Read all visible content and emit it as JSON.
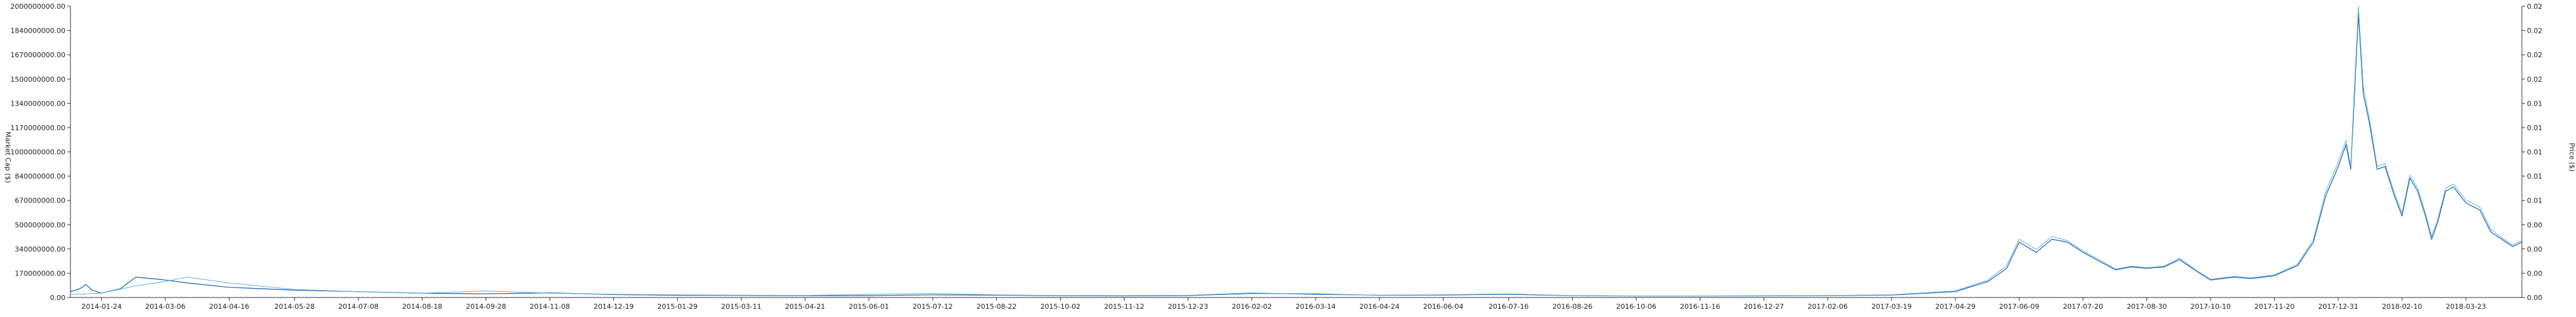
{
  "chart_data": {
    "type": "line",
    "title": "",
    "ylabel_left": "Market Cap ($)",
    "ylabel_right": "Price ($)",
    "y_left_ticks": [
      "0.00",
      "170000000.00",
      "340000000.00",
      "500000000.00",
      "670000000.00",
      "840000000.00",
      "1000000000.00",
      "1170000000.00",
      "1340000000.00",
      "1500000000.00",
      "1670000000.00",
      "1840000000.00",
      "2000000000.00"
    ],
    "y_left_range": [
      0,
      2000000000
    ],
    "y_right_ticks": [
      "0.00",
      "0.00",
      "0.00",
      "0.00",
      "0.01",
      "0.01",
      "0.01",
      "0.01",
      "0.01",
      "0.02",
      "0.02",
      "0.02",
      "0.02"
    ],
    "y_right_range": [
      0,
      0.024
    ],
    "x_ticks": [
      "2014-01-24",
      "2014-03-06",
      "2014-04-16",
      "2014-05-28",
      "2014-07-08",
      "2014-08-18",
      "2014-09-28",
      "2014-11-08",
      "2014-12-19",
      "2015-01-29",
      "2015-03-11",
      "2015-04-21",
      "2015-06-01",
      "2015-07-12",
      "2015-08-22",
      "2015-10-02",
      "2015-11-12",
      "2015-12-23",
      "2016-02-02",
      "2016-03-14",
      "2016-04-24",
      "2016-06-04",
      "2016-07-16",
      "2016-08-26",
      "2016-10-06",
      "2016-11-16",
      "2016-12-27",
      "2017-02-06",
      "2017-03-19",
      "2017-04-29",
      "2017-06-09",
      "2017-07-20",
      "2017-08-30",
      "2017-10-10",
      "2017-11-20",
      "2017-12-31",
      "2018-02-10",
      "2018-03-23"
    ],
    "x_range": [
      "2014-01-04",
      "2018-04-28"
    ],
    "grid": false,
    "colors": {
      "market_cap": "#1a5fa8",
      "price": "#5ab0e6",
      "axis": "#333333"
    },
    "series": [
      {
        "axis": "left",
        "points": [
          [
            "2014-01-04",
            40000000
          ],
          [
            "2014-01-10",
            60000000
          ],
          [
            "2014-01-14",
            90000000
          ],
          [
            "2014-01-18",
            50000000
          ],
          [
            "2014-01-24",
            30000000
          ],
          [
            "2014-02-05",
            60000000
          ],
          [
            "2014-02-15",
            140000000
          ],
          [
            "2014-02-25",
            130000000
          ],
          [
            "2014-03-06",
            120000000
          ],
          [
            "2014-03-20",
            100000000
          ],
          [
            "2014-04-16",
            70000000
          ],
          [
            "2014-05-28",
            50000000
          ],
          [
            "2014-07-08",
            40000000
          ],
          [
            "2014-08-18",
            30000000
          ],
          [
            "2014-09-28",
            25000000
          ],
          [
            "2014-11-08",
            32000000
          ],
          [
            "2014-12-19",
            20000000
          ],
          [
            "2015-01-29",
            15000000
          ],
          [
            "2015-03-11",
            14000000
          ],
          [
            "2015-04-21",
            12000000
          ],
          [
            "2015-06-01",
            13000000
          ],
          [
            "2015-07-12",
            18000000
          ],
          [
            "2015-08-22",
            16000000
          ],
          [
            "2015-10-02",
            12000000
          ],
          [
            "2015-11-12",
            11000000
          ],
          [
            "2015-12-23",
            13000000
          ],
          [
            "2016-02-02",
            28000000
          ],
          [
            "2016-03-14",
            24000000
          ],
          [
            "2016-04-24",
            15000000
          ],
          [
            "2016-06-04",
            17000000
          ],
          [
            "2016-07-16",
            22000000
          ],
          [
            "2016-08-26",
            12000000
          ],
          [
            "2016-10-06",
            10000000
          ],
          [
            "2016-11-16",
            10000000
          ],
          [
            "2016-12-27",
            11000000
          ],
          [
            "2017-02-06",
            13000000
          ],
          [
            "2017-03-19",
            17000000
          ],
          [
            "2017-04-29",
            40000000
          ],
          [
            "2017-05-20",
            110000000
          ],
          [
            "2017-06-01",
            200000000
          ],
          [
            "2017-06-09",
            380000000
          ],
          [
            "2017-06-20",
            310000000
          ],
          [
            "2017-06-30",
            400000000
          ],
          [
            "2017-07-10",
            380000000
          ],
          [
            "2017-07-20",
            310000000
          ],
          [
            "2017-08-01",
            240000000
          ],
          [
            "2017-08-10",
            190000000
          ],
          [
            "2017-08-20",
            210000000
          ],
          [
            "2017-08-30",
            200000000
          ],
          [
            "2017-09-10",
            210000000
          ],
          [
            "2017-09-20",
            260000000
          ],
          [
            "2017-10-01",
            180000000
          ],
          [
            "2017-10-10",
            120000000
          ],
          [
            "2017-10-25",
            140000000
          ],
          [
            "2017-11-05",
            130000000
          ],
          [
            "2017-11-20",
            150000000
          ],
          [
            "2017-12-05",
            220000000
          ],
          [
            "2017-12-15",
            380000000
          ],
          [
            "2017-12-23",
            700000000
          ],
          [
            "2017-12-31",
            900000000
          ],
          [
            "2018-01-05",
            1050000000
          ],
          [
            "2018-01-08",
            880000000
          ],
          [
            "2018-01-10",
            1300000000
          ],
          [
            "2018-01-13",
            1950000000
          ],
          [
            "2018-01-16",
            1400000000
          ],
          [
            "2018-01-20",
            1200000000
          ],
          [
            "2018-01-25",
            880000000
          ],
          [
            "2018-01-30",
            900000000
          ],
          [
            "2018-02-05",
            700000000
          ],
          [
            "2018-02-10",
            560000000
          ],
          [
            "2018-02-15",
            820000000
          ],
          [
            "2018-02-20",
            730000000
          ],
          [
            "2018-02-25",
            560000000
          ],
          [
            "2018-03-01",
            400000000
          ],
          [
            "2018-03-05",
            520000000
          ],
          [
            "2018-03-10",
            730000000
          ],
          [
            "2018-03-15",
            760000000
          ],
          [
            "2018-03-23",
            650000000
          ],
          [
            "2018-04-01",
            600000000
          ],
          [
            "2018-04-08",
            450000000
          ],
          [
            "2018-04-15",
            400000000
          ],
          [
            "2018-04-22",
            350000000
          ],
          [
            "2018-04-28",
            380000000
          ]
        ]
      },
      {
        "axis": "left",
        "points": [
          [
            "2014-01-04",
            20000000
          ],
          [
            "2014-01-24",
            30000000
          ],
          [
            "2014-02-15",
            80000000
          ],
          [
            "2014-03-06",
            110000000
          ],
          [
            "2014-03-20",
            140000000
          ],
          [
            "2014-04-16",
            100000000
          ],
          [
            "2014-05-28",
            55000000
          ],
          [
            "2014-07-08",
            40000000
          ],
          [
            "2014-08-18",
            30000000
          ],
          [
            "2014-09-28",
            45000000
          ],
          [
            "2014-11-08",
            30000000
          ],
          [
            "2014-12-19",
            22000000
          ],
          [
            "2015-01-29",
            18000000
          ],
          [
            "2015-03-11",
            16000000
          ],
          [
            "2015-04-21",
            14000000
          ],
          [
            "2015-06-01",
            22000000
          ],
          [
            "2015-07-12",
            28000000
          ],
          [
            "2015-08-22",
            18000000
          ],
          [
            "2015-10-02",
            14000000
          ],
          [
            "2015-11-12",
            13000000
          ],
          [
            "2015-12-23",
            15000000
          ],
          [
            "2016-02-02",
            32000000
          ],
          [
            "2016-03-14",
            20000000
          ],
          [
            "2016-04-24",
            16000000
          ],
          [
            "2016-06-04",
            19000000
          ],
          [
            "2016-07-16",
            25000000
          ],
          [
            "2016-08-26",
            13000000
          ],
          [
            "2016-10-06",
            11000000
          ],
          [
            "2016-11-16",
            11000000
          ],
          [
            "2016-12-27",
            12000000
          ],
          [
            "2017-02-06",
            14000000
          ],
          [
            "2017-03-19",
            19000000
          ],
          [
            "2017-04-29",
            45000000
          ],
          [
            "2017-05-20",
            120000000
          ],
          [
            "2017-06-01",
            220000000
          ],
          [
            "2017-06-09",
            400000000
          ],
          [
            "2017-06-20",
            330000000
          ],
          [
            "2017-06-30",
            420000000
          ],
          [
            "2017-07-10",
            390000000
          ],
          [
            "2017-07-20",
            320000000
          ],
          [
            "2017-08-01",
            250000000
          ],
          [
            "2017-08-10",
            195000000
          ],
          [
            "2017-08-20",
            215000000
          ],
          [
            "2017-08-30",
            205000000
          ],
          [
            "2017-09-10",
            215000000
          ],
          [
            "2017-09-20",
            270000000
          ],
          [
            "2017-10-01",
            185000000
          ],
          [
            "2017-10-10",
            125000000
          ],
          [
            "2017-10-25",
            145000000
          ],
          [
            "2017-11-05",
            135000000
          ],
          [
            "2017-11-20",
            155000000
          ],
          [
            "2017-12-05",
            230000000
          ],
          [
            "2017-12-15",
            400000000
          ],
          [
            "2017-12-23",
            730000000
          ],
          [
            "2017-12-31",
            930000000
          ],
          [
            "2018-01-05",
            1080000000
          ],
          [
            "2018-01-08",
            900000000
          ],
          [
            "2018-01-10",
            1350000000
          ],
          [
            "2018-01-13",
            2000000000
          ],
          [
            "2018-01-16",
            1450000000
          ],
          [
            "2018-01-20",
            1230000000
          ],
          [
            "2018-01-25",
            900000000
          ],
          [
            "2018-01-30",
            920000000
          ],
          [
            "2018-02-05",
            720000000
          ],
          [
            "2018-02-10",
            580000000
          ],
          [
            "2018-02-15",
            840000000
          ],
          [
            "2018-02-20",
            750000000
          ],
          [
            "2018-02-25",
            580000000
          ],
          [
            "2018-03-01",
            420000000
          ],
          [
            "2018-03-05",
            540000000
          ],
          [
            "2018-03-10",
            750000000
          ],
          [
            "2018-03-15",
            780000000
          ],
          [
            "2018-03-23",
            670000000
          ],
          [
            "2018-04-01",
            620000000
          ],
          [
            "2018-04-08",
            470000000
          ],
          [
            "2018-04-15",
            410000000
          ],
          [
            "2018-04-22",
            360000000
          ],
          [
            "2018-04-28",
            390000000
          ]
        ]
      }
    ]
  }
}
